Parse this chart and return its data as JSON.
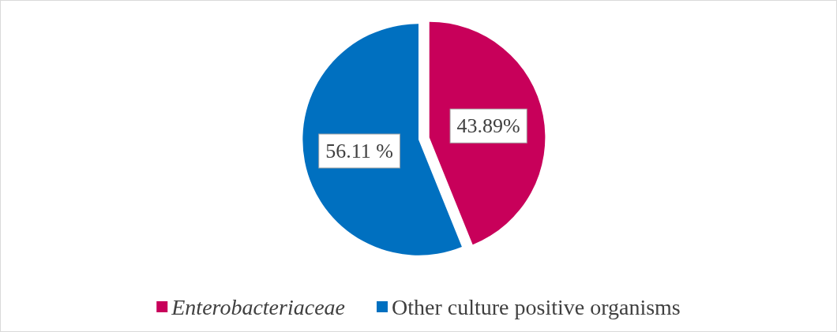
{
  "chart_data": {
    "type": "pie",
    "categories": [
      "Enterobacteriaceae",
      "Other culture positive organisms"
    ],
    "values": [
      43.89,
      56.11
    ],
    "value_labels": [
      "43.89%",
      "56.11 %"
    ],
    "colors": [
      "#c8005a",
      "#0070c0"
    ],
    "legend": "bottom"
  }
}
